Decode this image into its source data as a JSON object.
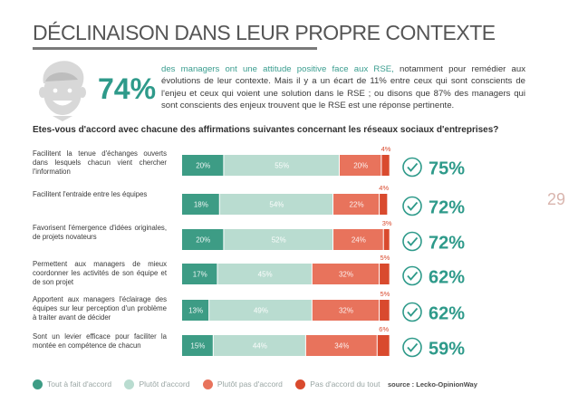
{
  "title": "DÉCLINAISON DANS LEUR PROPRE CONTEXTE",
  "big_percent": "74%",
  "intro": {
    "highlight": "des managers ont une attitude positive face aux RSE,",
    "rest": " notamment pour remédier aux évolutions de leur contexte. Mais il y a un écart de 11% entre ceux qui sont conscients de l'enjeu et ceux qui voient une solution dans le RSE ; ou disons que 87% des managers qui sont conscients des enjeux trouvent que le RSE est une réponse pertinente."
  },
  "question": "Etes-vous d'accord avec chacune des affirmations suivantes concernant les réseaux sociaux d'entreprises?",
  "page_number": "29",
  "colors": {
    "tout_fait": "#3d9c85",
    "plutot": "#b9dcd0",
    "plutot_pas": "#e8735c",
    "pas_du_tout": "#d94a2e",
    "accent": "#2e9a8a"
  },
  "chart_data": {
    "type": "bar",
    "orientation": "horizontal",
    "stacked": true,
    "title": "Etes-vous d'accord avec chacune des affirmations suivantes concernant les réseaux sociaux d'entreprises?",
    "categories": [
      "Facilitent la tenue d'échanges ouverts dans lesquels chacun vient chercher l'information",
      "Facilitent l'entraide entre les équipes",
      "Favorisent l'émergence d'idées originales, de projets novateurs",
      "Permettent aux managers de mieux coordonner les activités de son équipe et de son projet",
      "Apportent aux managers l'éclairage des équipes sur leur perception d'un problème à traiter avant de décider",
      "Sont un levier efficace pour faciliter la montée en compétence de chacun"
    ],
    "series": [
      {
        "name": "Tout à fait d'accord",
        "values": [
          20,
          18,
          20,
          17,
          13,
          15
        ]
      },
      {
        "name": "Plutôt d'accord",
        "values": [
          55,
          54,
          52,
          45,
          49,
          44
        ]
      },
      {
        "name": "Plutôt pas d'accord",
        "values": [
          20,
          22,
          24,
          32,
          32,
          34
        ]
      },
      {
        "name": "Pas d'accord du tout",
        "values": [
          4,
          4,
          3,
          5,
          5,
          6
        ]
      }
    ],
    "totals_agree": [
      "75%",
      "72%",
      "72%",
      "62%",
      "62%",
      "59%"
    ],
    "xlim": [
      0,
      100
    ],
    "legend": "bottom",
    "source": "source : Lecko-OpinionWay"
  }
}
